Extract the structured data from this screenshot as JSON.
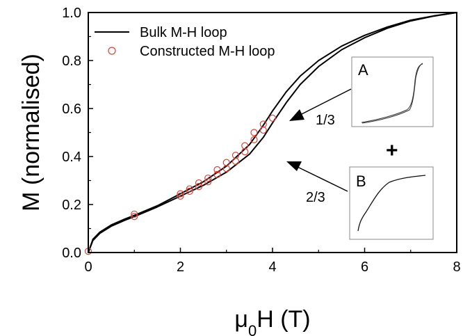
{
  "chart_data": {
    "type": "line",
    "xlabel": {
      "main": "μ",
      "sub": "0",
      "rest": "H (T)"
    },
    "ylabel": "M (normalised)",
    "xlim": [
      0,
      8
    ],
    "ylim": [
      0,
      1.0
    ],
    "x_ticks": [
      0,
      2,
      4,
      6,
      8
    ],
    "y_ticks": [
      0.0,
      0.2,
      0.4,
      0.6,
      0.8,
      1.0
    ],
    "y_tick_labels": [
      "0.0",
      "0.2",
      "0.4",
      "0.6",
      "0.8",
      "1.0"
    ],
    "legend_position": "top-left",
    "series": [
      {
        "name": "Bulk M-H loop",
        "style": "line",
        "color": "#000000",
        "branches": [
          {
            "x": [
              0,
              0.1,
              0.25,
              0.5,
              0.8,
              1.0,
              1.5,
              2.0,
              2.5,
              3.0,
              3.5,
              3.8,
              4.0,
              4.3,
              4.6,
              5.0,
              5.5,
              6.0,
              6.5,
              7.0,
              7.5,
              8.0
            ],
            "y": [
              0.0,
              0.05,
              0.08,
              0.11,
              0.135,
              0.15,
              0.19,
              0.235,
              0.28,
              0.335,
              0.41,
              0.48,
              0.54,
              0.625,
              0.7,
              0.775,
              0.845,
              0.895,
              0.935,
              0.965,
              0.985,
              1.0
            ]
          },
          {
            "x": [
              0,
              0.1,
              0.25,
              0.5,
              0.8,
              1.0,
              1.5,
              2.0,
              2.5,
              3.0,
              3.5,
              3.8,
              4.0,
              4.3,
              4.6,
              5.0,
              5.5,
              6.0,
              6.5,
              7.0,
              7.5,
              8.0
            ],
            "y": [
              0.0,
              0.055,
              0.085,
              0.115,
              0.14,
              0.155,
              0.195,
              0.245,
              0.295,
              0.36,
              0.45,
              0.53,
              0.59,
              0.67,
              0.735,
              0.8,
              0.86,
              0.905,
              0.94,
              0.968,
              0.986,
              1.0
            ]
          }
        ]
      },
      {
        "name": "Constructed M-H loop",
        "style": "markers",
        "marker": "open-circle",
        "color": "#d9433a",
        "x": [
          0.0,
          1.0,
          1.0,
          2.0,
          2.0,
          2.2,
          2.2,
          2.4,
          2.4,
          2.6,
          2.6,
          2.8,
          2.8,
          3.0,
          3.0,
          3.2,
          3.2,
          3.4,
          3.4,
          3.6,
          3.6,
          3.8,
          3.8,
          4.0
        ],
        "y": [
          0.005,
          0.15,
          0.16,
          0.235,
          0.245,
          0.255,
          0.265,
          0.275,
          0.29,
          0.295,
          0.31,
          0.325,
          0.345,
          0.35,
          0.375,
          0.38,
          0.405,
          0.42,
          0.445,
          0.47,
          0.5,
          0.51,
          0.535,
          0.56
        ]
      }
    ],
    "annotations": {
      "fraction_a": "1/3",
      "fraction_b": "2/3",
      "plus": "+",
      "inset_a_label": "A",
      "inset_b_label": "B"
    }
  }
}
